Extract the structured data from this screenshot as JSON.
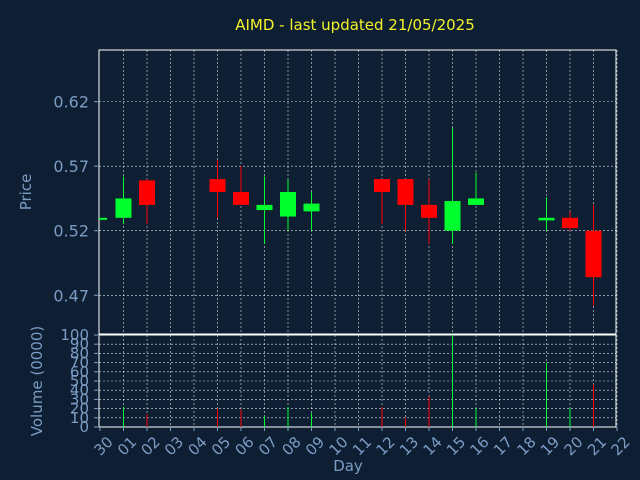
{
  "colors": {
    "background": "#0f1f33",
    "plot_area": "#0f1f33",
    "grid": "#ffffff",
    "axis_text": "#7b9cc4",
    "title": "#f2f22a",
    "up": "#00ff2e",
    "down": "#ff0000"
  },
  "chart_data": [
    {
      "type": "candlestick",
      "title": "AIMD - last updated 21/05/2025",
      "ylabel": "Price",
      "ylim": [
        0.44,
        0.66
      ],
      "yticks": [
        0.47,
        0.52,
        0.57,
        0.62
      ],
      "ytick_labels": [
        "0.47",
        "0.52",
        "0.57",
        "0.62"
      ],
      "grid": true,
      "categories": [
        "30",
        "01",
        "02",
        "03",
        "04",
        "05",
        "06",
        "07",
        "08",
        "09",
        "10",
        "11",
        "12",
        "13",
        "14",
        "15",
        "16",
        "17",
        "18",
        "19",
        "20",
        "21",
        "22"
      ],
      "candles": [
        {
          "x": 0,
          "open": 0.53,
          "high": 0.53,
          "low": 0.53,
          "close": 0.53
        },
        {
          "x": 1,
          "open": 0.53,
          "high": 0.562,
          "low": 0.525,
          "close": 0.545
        },
        {
          "x": 2,
          "open": 0.559,
          "high": 0.56,
          "low": 0.525,
          "close": 0.54
        },
        {
          "x": 5,
          "open": 0.56,
          "high": 0.575,
          "low": 0.53,
          "close": 0.55
        },
        {
          "x": 6,
          "open": 0.55,
          "high": 0.57,
          "low": 0.54,
          "close": 0.54
        },
        {
          "x": 7,
          "open": 0.536,
          "high": 0.562,
          "low": 0.51,
          "close": 0.54
        },
        {
          "x": 8,
          "open": 0.531,
          "high": 0.56,
          "low": 0.52,
          "close": 0.55
        },
        {
          "x": 9,
          "open": 0.535,
          "high": 0.55,
          "low": 0.52,
          "close": 0.541
        },
        {
          "x": 12,
          "open": 0.56,
          "high": 0.56,
          "low": 0.525,
          "close": 0.55
        },
        {
          "x": 13,
          "open": 0.56,
          "high": 0.56,
          "low": 0.52,
          "close": 0.54
        },
        {
          "x": 14,
          "open": 0.54,
          "high": 0.56,
          "low": 0.51,
          "close": 0.53
        },
        {
          "x": 15,
          "open": 0.52,
          "high": 0.6,
          "low": 0.51,
          "close": 0.543
        },
        {
          "x": 16,
          "open": 0.54,
          "high": 0.565,
          "low": 0.54,
          "close": 0.545
        },
        {
          "x": 19,
          "open": 0.528,
          "high": 0.546,
          "low": 0.52,
          "close": 0.53
        },
        {
          "x": 20,
          "open": 0.53,
          "high": 0.535,
          "low": 0.52,
          "close": 0.522
        },
        {
          "x": 21,
          "open": 0.52,
          "high": 0.54,
          "low": 0.462,
          "close": 0.484
        }
      ]
    },
    {
      "type": "bar",
      "ylabel": "Volume (0000)",
      "xlabel": "Day",
      "ylim": [
        0,
        100
      ],
      "yticks": [
        0,
        10,
        20,
        30,
        40,
        50,
        60,
        70,
        80,
        90,
        100
      ],
      "ytick_labels": [
        "0",
        "10",
        "20",
        "30",
        "40",
        "50",
        "60",
        "70",
        "80",
        "90",
        "100"
      ],
      "grid": true,
      "categories": [
        "30",
        "01",
        "02",
        "03",
        "04",
        "05",
        "06",
        "07",
        "08",
        "09",
        "10",
        "11",
        "12",
        "13",
        "14",
        "15",
        "16",
        "17",
        "18",
        "19",
        "20",
        "21",
        "22"
      ],
      "bars": [
        {
          "x": 0,
          "value": 0,
          "color": "up"
        },
        {
          "x": 1,
          "value": 22,
          "color": "up"
        },
        {
          "x": 2,
          "value": 14,
          "color": "down"
        },
        {
          "x": 5,
          "value": 20,
          "color": "down"
        },
        {
          "x": 6,
          "value": 19,
          "color": "down"
        },
        {
          "x": 7,
          "value": 12,
          "color": "up"
        },
        {
          "x": 8,
          "value": 22,
          "color": "up"
        },
        {
          "x": 9,
          "value": 15,
          "color": "up"
        },
        {
          "x": 12,
          "value": 22,
          "color": "down"
        },
        {
          "x": 13,
          "value": 10,
          "color": "down"
        },
        {
          "x": 14,
          "value": 33,
          "color": "down"
        },
        {
          "x": 15,
          "value": 100,
          "color": "up"
        },
        {
          "x": 16,
          "value": 21,
          "color": "up"
        },
        {
          "x": 19,
          "value": 70,
          "color": "up"
        },
        {
          "x": 20,
          "value": 21,
          "color": "up"
        },
        {
          "x": 21,
          "value": 46,
          "color": "down"
        }
      ]
    }
  ]
}
